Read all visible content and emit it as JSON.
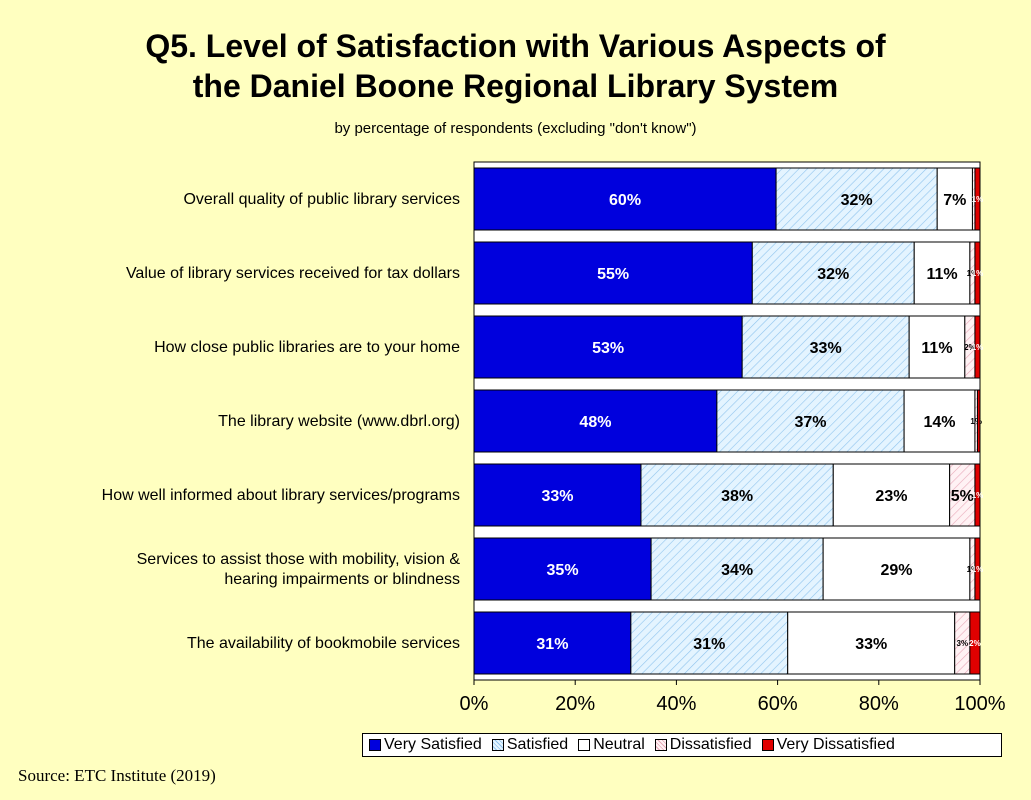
{
  "title_line1": "Q5. Level of Satisfaction with Various Aspects of",
  "title_line2": "the Daniel Boone Regional Library System",
  "subtitle": "by percentage of respondents (excluding \"don't know\")",
  "source": "Source:  ETC Institute (2019)",
  "chart_data": {
    "type": "bar",
    "orientation": "horizontal",
    "stacked": true,
    "percent_stacked": true,
    "categories": [
      "Overall quality of public library services",
      "Value of library services received for tax dollars",
      "How close public libraries are to your home",
      "The library website (www.dbrl.org)",
      "How well informed about library services/programs",
      "Services to assist those with mobility, vision & hearing impairments or blindness",
      "The availability of bookmobile services"
    ],
    "category_lines": [
      [
        "Overall quality of public library services"
      ],
      [
        "Value of library services received for tax dollars"
      ],
      [
        "How close public libraries are to your home"
      ],
      [
        "The library website (www.dbrl.org)"
      ],
      [
        "How well informed about library services/programs"
      ],
      [
        "Services to assist those with mobility, vision &",
        "hearing impairments or blindness"
      ],
      [
        "The availability of bookmobile services"
      ]
    ],
    "series": [
      {
        "name": "Very Satisfied",
        "color": "#0000e0",
        "values": [
          60,
          55,
          53,
          48,
          33,
          35,
          31
        ],
        "labels": [
          "60%",
          "55%",
          "53%",
          "48%",
          "33%",
          "35%",
          "31%"
        ]
      },
      {
        "name": "Satisfied",
        "color": "#d8f0ff",
        "values": [
          32,
          32,
          33,
          37,
          38,
          34,
          31
        ],
        "labels": [
          "32%",
          "32%",
          "33%",
          "37%",
          "38%",
          "34%",
          "31%"
        ]
      },
      {
        "name": "Neutral",
        "color": "#ffffff",
        "values": [
          7,
          11,
          11,
          14,
          23,
          29,
          33
        ],
        "labels": [
          "7%",
          "11%",
          "11%",
          "14%",
          "23%",
          "29%",
          "33%"
        ]
      },
      {
        "name": "Dissatisfied",
        "color": "#ffe0e8",
        "values": [
          0.5,
          1,
          2,
          0.5,
          5,
          1,
          3
        ],
        "labels": [
          "",
          "1%",
          "2%",
          "1%",
          "5%",
          "1%",
          "3%"
        ]
      },
      {
        "name": "Very Dissatisfied",
        "color": "#e00000",
        "values": [
          1,
          1,
          1,
          0.5,
          1,
          1,
          2
        ],
        "labels": [
          "1%",
          "1%",
          "1%",
          "",
          "1%",
          "1%",
          "2%"
        ]
      }
    ],
    "x_ticks": [
      "0%",
      "20%",
      "40%",
      "60%",
      "80%",
      "100%"
    ],
    "xlim": [
      0,
      100
    ],
    "grid": false,
    "legend_position": "bottom"
  }
}
